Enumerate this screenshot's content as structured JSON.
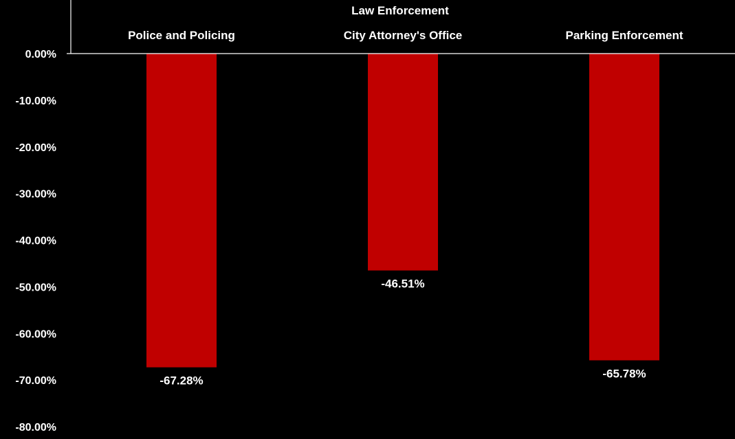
{
  "chart_data": {
    "type": "bar",
    "group_label": "Law Enforcement",
    "categories": [
      "Police and Policing",
      "City Attorney's Office",
      "Parking Enforcement"
    ],
    "values": [
      -67.28,
      -46.51,
      -65.78
    ],
    "data_labels": [
      "-67.28%",
      "-46.51%",
      "-65.78%"
    ],
    "ylim": [
      -80,
      0
    ],
    "yticks": [
      0,
      -10,
      -20,
      -30,
      -40,
      -50,
      -60,
      -70,
      -80
    ],
    "ytick_labels": [
      "0.00%",
      "-10.00%",
      "-20.00%",
      "-30.00%",
      "-40.00%",
      "-50.00%",
      "-60.00%",
      "-70.00%",
      "-80.00%"
    ],
    "grid": false,
    "legend": "none",
    "colors": {
      "bar": "#c00000",
      "background": "#000000",
      "text": "#ffffff",
      "axis": "#ffffff"
    }
  }
}
